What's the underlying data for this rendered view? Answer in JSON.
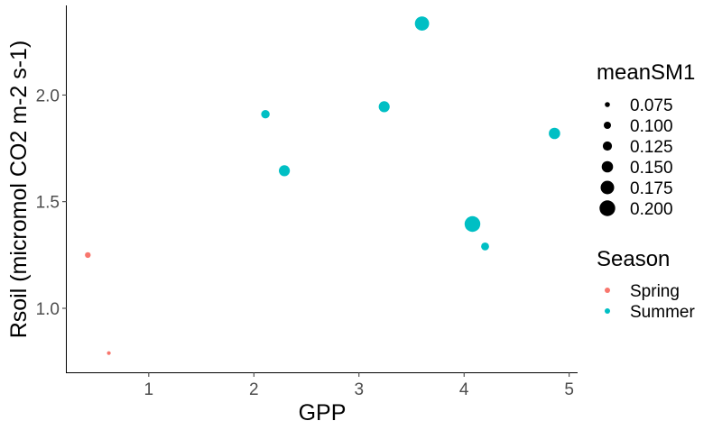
{
  "chart_data": {
    "type": "scatter",
    "xlabel": "GPP",
    "ylabel": "Rsoil (micromol CO2 m-2 s-1)",
    "xlim": [
      0.22,
      5.08
    ],
    "ylim": [
      0.7,
      2.42
    ],
    "x_ticks": [
      1,
      2,
      3,
      4,
      5
    ],
    "y_ticks": [
      1.0,
      1.5,
      2.0
    ],
    "x_tick_labels": [
      "1",
      "2",
      "3",
      "4",
      "5"
    ],
    "y_tick_labels": [
      "1.0",
      "1.5",
      "2.0"
    ],
    "grid": false,
    "legend_position": "right",
    "size_legend": {
      "title": "meanSM1",
      "items": [
        {
          "label": "0.075",
          "value": 0.075
        },
        {
          "label": "0.100",
          "value": 0.1
        },
        {
          "label": "0.125",
          "value": 0.125
        },
        {
          "label": "0.150",
          "value": 0.15
        },
        {
          "label": "0.175",
          "value": 0.175
        },
        {
          "label": "0.200",
          "value": 0.2
        }
      ]
    },
    "color_legend": {
      "title": "Season",
      "items": [
        {
          "label": "Spring",
          "color": "#F8766D"
        },
        {
          "label": "Summer",
          "color": "#00BFC4"
        }
      ]
    },
    "series": [
      {
        "name": "Spring",
        "color": "#F8766D",
        "points": [
          {
            "x": 0.42,
            "y": 1.25,
            "size": 0.085
          },
          {
            "x": 0.62,
            "y": 0.79,
            "size": 0.06
          }
        ]
      },
      {
        "name": "Summer",
        "color": "#00BFC4",
        "points": [
          {
            "x": 2.11,
            "y": 1.91,
            "size": 0.115
          },
          {
            "x": 2.29,
            "y": 1.645,
            "size": 0.145
          },
          {
            "x": 3.24,
            "y": 1.945,
            "size": 0.145
          },
          {
            "x": 3.6,
            "y": 2.335,
            "size": 0.185
          },
          {
            "x": 4.08,
            "y": 1.395,
            "size": 0.2
          },
          {
            "x": 4.2,
            "y": 1.29,
            "size": 0.11
          },
          {
            "x": 4.86,
            "y": 1.82,
            "size": 0.15
          }
        ]
      }
    ]
  }
}
